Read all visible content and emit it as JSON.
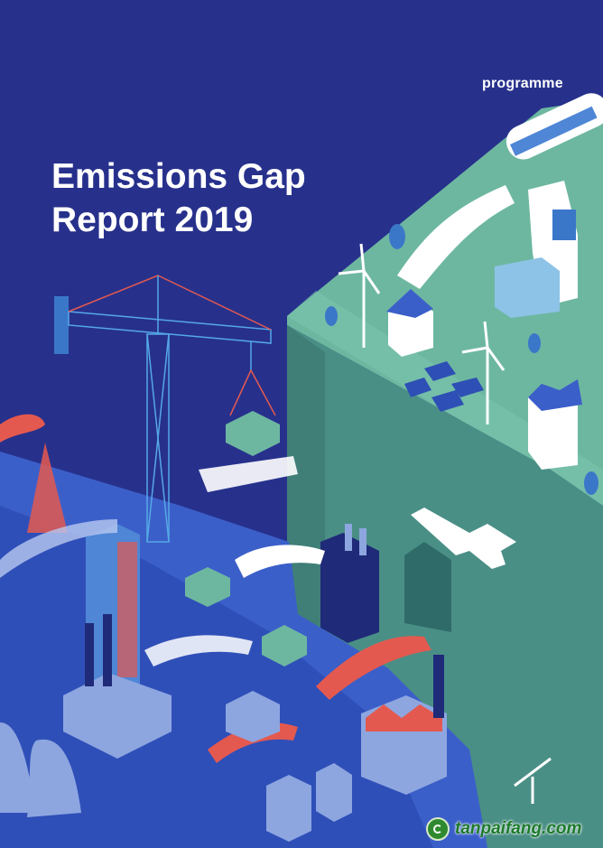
{
  "header": {
    "org_label": "programme"
  },
  "cover": {
    "title_line1": "Emissions Gap",
    "title_line2": "Report 2019"
  },
  "watermark": {
    "text": "tanpaifang.com",
    "logo_icon": "leaf-circle-icon"
  },
  "colors": {
    "background": "#27318c",
    "plateau": "#6fb8a0",
    "cliff": "#4a8f86",
    "city": "#3b5fc9",
    "smoke": "#e4594f"
  }
}
